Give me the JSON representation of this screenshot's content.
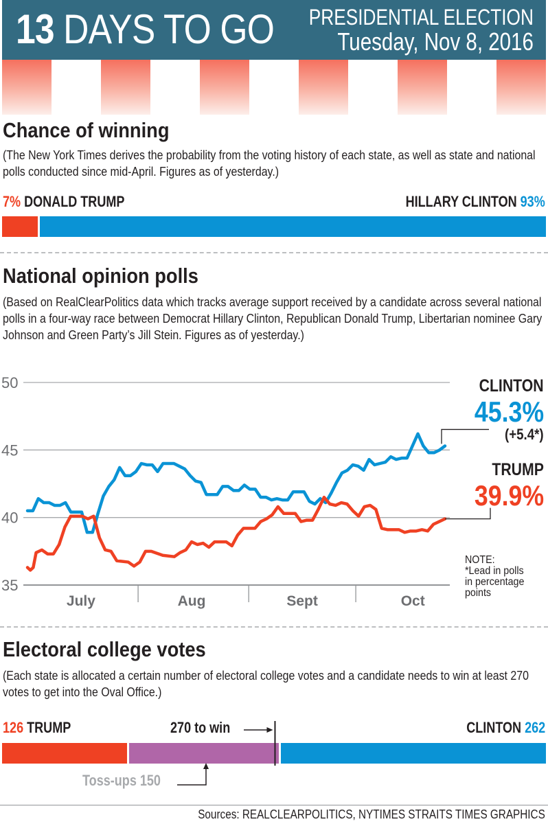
{
  "header": {
    "days_number": "13",
    "days_text": "DAYS TO GO",
    "line1": "PRESIDENTIAL ELECTION",
    "line2": "Tuesday, Nov 8, 2016",
    "bg_color": "#336b82"
  },
  "colors": {
    "trump": "#ef4123",
    "clinton": "#0a93d5",
    "tossup": "#b066a8"
  },
  "chance": {
    "title": "Chance of winning",
    "description": "(The New York Times derives the probability from the voting history of each state, as well as state and national polls conducted since mid-April. Figures as of yesterday.)",
    "trump_pct": "7%",
    "trump_name": "DONALD TRUMP",
    "clinton_name": "HILLARY CLINTON",
    "clinton_pct": "93%",
    "trump_value": 7,
    "clinton_value": 93
  },
  "polls": {
    "title": "National opinion polls",
    "description": "(Based on RealClearPolitics data which tracks average support received by a candidate across several national polls in a four-way race between Democrat Hillary Clinton, Republican Donald Trump, Libertarian nominee Gary Johnson and Green Party’s Jill Stein. Figures as of yesterday.)",
    "clinton_label": "CLINTON",
    "clinton_value": "45.3%",
    "clinton_lead": "(+5.4*)",
    "trump_label": "TRUMP",
    "trump_value": "39.9%",
    "note_lines": [
      "NOTE:",
      "*Lead in polls",
      "in percentage",
      "points"
    ]
  },
  "chart_data": {
    "type": "line",
    "title": "National opinion polls",
    "xlabel": "",
    "ylabel": "",
    "ylim": [
      35,
      50
    ],
    "yticks": [
      35,
      40,
      45,
      50
    ],
    "grid": true,
    "x_range_days": [
      0,
      117
    ],
    "month_ticks": [
      {
        "label": "July",
        "center_day": 15
      },
      {
        "label": "Aug",
        "center_day": 46
      },
      {
        "label": "Sept",
        "center_day": 77
      },
      {
        "label": "Oct",
        "center_day": 108
      }
    ],
    "month_dividers_day": [
      31,
      62,
      92
    ],
    "series": [
      {
        "name": "Clinton",
        "color": "#0a93d5",
        "points": [
          [
            0,
            40.5
          ],
          [
            2,
            40.5
          ],
          [
            4,
            41.4
          ],
          [
            6,
            41.1
          ],
          [
            8,
            41.1
          ],
          [
            10,
            40.9
          ],
          [
            12,
            40.9
          ],
          [
            14,
            41.1
          ],
          [
            16,
            40.4
          ],
          [
            20,
            40.4
          ],
          [
            22,
            38.9
          ],
          [
            24,
            38.9
          ],
          [
            26,
            40.3
          ],
          [
            28,
            41.6
          ],
          [
            30,
            42.3
          ],
          [
            32,
            42.8
          ],
          [
            34,
            43.7
          ],
          [
            36,
            43.1
          ],
          [
            38,
            43.1
          ],
          [
            40,
            43.4
          ],
          [
            42,
            44.0
          ],
          [
            44,
            43.9
          ],
          [
            46,
            43.9
          ],
          [
            48,
            43.4
          ],
          [
            50,
            44.0
          ],
          [
            54,
            44.0
          ],
          [
            56,
            43.8
          ],
          [
            58,
            43.6
          ],
          [
            60,
            43.1
          ],
          [
            62,
            42.7
          ],
          [
            64,
            42.6
          ],
          [
            66,
            41.7
          ],
          [
            70,
            41.7
          ],
          [
            72,
            42.3
          ],
          [
            74,
            42.3
          ],
          [
            76,
            42.0
          ],
          [
            78,
            42.0
          ],
          [
            80,
            42.4
          ],
          [
            82,
            42.1
          ],
          [
            84,
            42.1
          ],
          [
            86,
            41.5
          ],
          [
            88,
            41.5
          ],
          [
            90,
            41.3
          ],
          [
            92,
            41.4
          ],
          [
            94,
            41.3
          ],
          [
            96,
            41.3
          ],
          [
            98,
            41.9
          ],
          [
            100,
            41.9
          ],
          [
            102,
            41.9
          ],
          [
            104,
            41.2
          ],
          [
            106,
            41.0
          ],
          [
            108,
            41.4
          ],
          [
            110,
            41.1
          ],
          [
            112,
            41.8
          ],
          [
            114,
            42.6
          ],
          [
            116,
            43.3
          ],
          [
            118,
            43.5
          ],
          [
            120,
            43.9
          ],
          [
            122,
            43.8
          ],
          [
            124,
            43.5
          ],
          [
            126,
            44.3
          ],
          [
            128,
            43.9
          ],
          [
            130,
            44.0
          ],
          [
            132,
            44.1
          ],
          [
            134,
            44.5
          ],
          [
            136,
            44.3
          ],
          [
            138,
            44.4
          ],
          [
            140,
            44.4
          ],
          [
            142,
            45.3
          ],
          [
            144,
            46.2
          ],
          [
            146,
            45.3
          ],
          [
            148,
            44.8
          ],
          [
            150,
            44.8
          ],
          [
            152,
            45.0
          ],
          [
            154,
            45.3
          ]
        ]
      },
      {
        "name": "Trump",
        "color": "#ef4123",
        "points": [
          [
            0,
            36.3
          ],
          [
            1,
            36.1
          ],
          [
            2,
            36.3
          ],
          [
            3,
            37.4
          ],
          [
            5,
            37.6
          ],
          [
            7,
            37.3
          ],
          [
            9,
            37.3
          ],
          [
            11,
            38.0
          ],
          [
            13,
            39.3
          ],
          [
            15,
            40.1
          ],
          [
            19,
            40.1
          ],
          [
            21,
            39.9
          ],
          [
            23,
            40.1
          ],
          [
            25,
            38.5
          ],
          [
            27,
            37.6
          ],
          [
            29,
            37.5
          ],
          [
            31,
            36.8
          ],
          [
            35,
            36.7
          ],
          [
            37,
            36.4
          ],
          [
            39,
            36.7
          ],
          [
            41,
            37.5
          ],
          [
            43,
            37.5
          ],
          [
            47,
            37.2
          ],
          [
            51,
            37.1
          ],
          [
            53,
            37.4
          ],
          [
            55,
            37.6
          ],
          [
            57,
            38.2
          ],
          [
            59,
            38.0
          ],
          [
            61,
            38.1
          ],
          [
            63,
            37.8
          ],
          [
            65,
            38.2
          ],
          [
            69,
            38.2
          ],
          [
            71,
            37.9
          ],
          [
            73,
            38.7
          ],
          [
            75,
            39.2
          ],
          [
            79,
            39.2
          ],
          [
            81,
            39.7
          ],
          [
            83,
            39.9
          ],
          [
            85,
            40.2
          ],
          [
            87,
            40.8
          ],
          [
            89,
            40.3
          ],
          [
            91,
            40.3
          ],
          [
            93,
            40.3
          ],
          [
            95,
            39.7
          ],
          [
            97,
            39.8
          ],
          [
            99,
            39.8
          ],
          [
            101,
            40.6
          ],
          [
            103,
            41.5
          ],
          [
            105,
            41.0
          ],
          [
            107,
            40.9
          ],
          [
            109,
            41.1
          ],
          [
            111,
            41.0
          ],
          [
            113,
            40.5
          ],
          [
            115,
            40.1
          ],
          [
            117,
            40.8
          ],
          [
            119,
            40.9
          ],
          [
            121,
            40.6
          ],
          [
            123,
            39.2
          ],
          [
            125,
            39.1
          ],
          [
            129,
            39.1
          ],
          [
            131,
            38.9
          ],
          [
            133,
            39.0
          ],
          [
            135,
            39.0
          ],
          [
            137,
            39.1
          ],
          [
            139,
            39.0
          ],
          [
            141,
            39.5
          ],
          [
            143,
            39.7
          ],
          [
            145,
            39.9
          ]
        ]
      }
    ]
  },
  "electoral": {
    "title": "Electoral college votes",
    "description": "(Each state is allocated a certain number of electoral college votes and a candidate needs to win at least 270 votes to get into the Oval Office.)",
    "trump_votes": "126",
    "trump_name": "TRUMP",
    "clinton_name": "CLINTON",
    "clinton_votes": "262",
    "to_win_label": "270 to win",
    "tossup_label": "Toss-ups 150",
    "trump_value": 126,
    "tossup_value": 150,
    "clinton_value": 262,
    "total": 538,
    "win_threshold": 270
  },
  "footer": {
    "sources": "Sources: REALCLEARPOLITICS, NYTIMES   STRAITS TIMES GRAPHICS"
  }
}
